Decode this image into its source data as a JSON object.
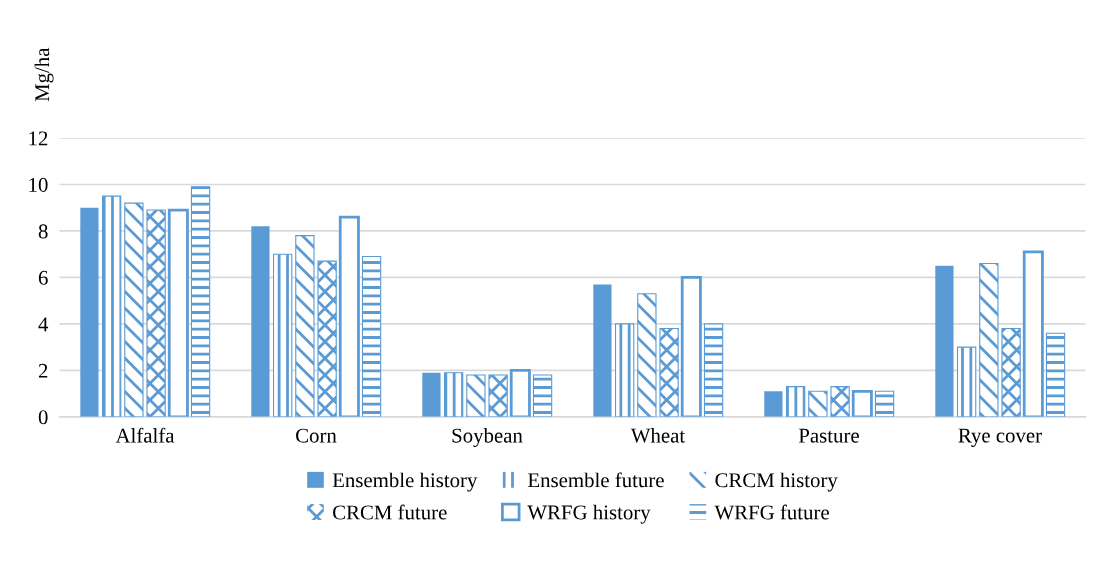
{
  "chart_data": {
    "type": "bar",
    "ylabel": "Mg/ha",
    "categories": [
      "Alfalfa",
      "Corn",
      "Soybean",
      "Wheat",
      "Pasture",
      "Rye cover"
    ],
    "series": [
      {
        "name": "Ensemble history",
        "color": "#5b9bd5",
        "values": [
          9.0,
          8.2,
          1.9,
          5.7,
          1.1,
          6.5
        ]
      },
      {
        "name": "Ensemble future",
        "color": "#5b9bd5",
        "values": [
          9.5,
          7.0,
          1.9,
          4.0,
          1.3,
          3.0
        ]
      },
      {
        "name": "CRCM history",
        "color": "#5b9bd5",
        "values": [
          9.2,
          7.8,
          1.8,
          5.3,
          1.1,
          6.6
        ]
      },
      {
        "name": "CRCM future",
        "color": "#5b9bd5",
        "values": [
          8.9,
          6.7,
          1.8,
          3.8,
          1.3,
          3.8
        ]
      },
      {
        "name": "WRFG history",
        "color": "#5b9bd5",
        "values": [
          8.9,
          8.6,
          2.0,
          6.0,
          1.1,
          7.1
        ]
      },
      {
        "name": "WRFG future",
        "color": "#5b9bd5",
        "values": [
          9.9,
          6.9,
          1.8,
          4.0,
          1.1,
          3.6
        ]
      }
    ],
    "ylim": [
      0,
      12
    ],
    "yticks": [
      0,
      2,
      4,
      6,
      8,
      10,
      12
    ],
    "grid": "y",
    "legend": "bottom"
  }
}
